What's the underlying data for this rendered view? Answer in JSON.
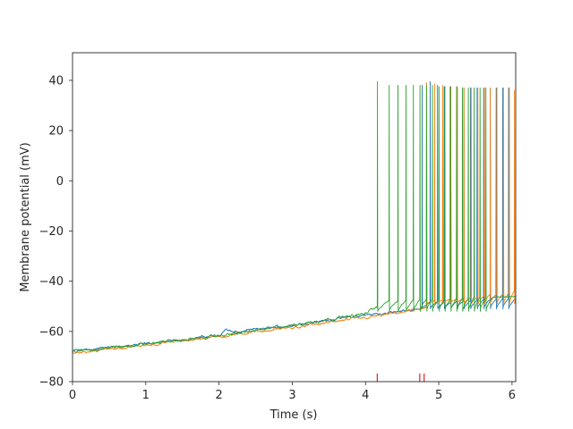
{
  "chart_data": {
    "type": "line",
    "title": "",
    "xlabel": "Time (s)",
    "ylabel": "Membrane potential (mV)",
    "xlim": [
      0,
      6.05
    ],
    "ylim": [
      -80,
      51
    ],
    "xticks": [
      0,
      1,
      2,
      3,
      4,
      5,
      6
    ],
    "yticks": [
      -80,
      -60,
      -40,
      -20,
      0,
      20,
      40
    ],
    "xtick_labels": [
      "0",
      "1",
      "2",
      "3",
      "4",
      "5",
      "6"
    ],
    "ytick_labels": [
      "−80",
      "−60",
      "−40",
      "−20",
      "0",
      "20",
      "40"
    ],
    "grid": false,
    "legend": "none",
    "series": [
      {
        "color": "#1f77b4",
        "start_v": -67.8,
        "baseline": [
          [
            0,
            -67.8
          ],
          [
            1.0,
            -65.0
          ],
          [
            2.0,
            -61.5
          ],
          [
            2.1,
            -59.0
          ],
          [
            2.2,
            -60.5
          ],
          [
            3.0,
            -57.5
          ],
          [
            3.5,
            -55.5
          ],
          [
            4.0,
            -53.5
          ],
          [
            4.5,
            -52.0
          ],
          [
            4.8,
            -50.5
          ],
          [
            6.05,
            -49.0
          ]
        ],
        "spike_times": [
          4.77,
          4.88,
          4.98,
          5.07,
          5.16,
          5.25,
          5.34,
          5.43,
          5.52,
          5.61,
          5.7,
          5.78,
          5.87,
          5.95
        ],
        "spike_peaks": [
          38,
          39.5,
          38,
          37.5,
          37.5,
          37,
          37,
          37,
          37,
          37,
          37,
          37,
          37,
          37
        ],
        "reset_v": -51
      },
      {
        "color": "#ff7f0e",
        "start_v": -68.5,
        "baseline": [
          [
            0,
            -68.5
          ],
          [
            1.0,
            -65.5
          ],
          [
            2.0,
            -62.0
          ],
          [
            3.0,
            -58.5
          ],
          [
            4.0,
            -54.5
          ],
          [
            4.5,
            -52.5
          ],
          [
            4.8,
            -50.5
          ],
          [
            6.05,
            -46.0
          ]
        ],
        "spike_times": [
          4.83,
          4.94,
          5.05,
          5.15,
          5.25,
          5.34,
          5.44,
          5.53,
          5.62,
          5.7,
          5.79,
          5.88,
          5.96,
          6.03
        ],
        "spike_peaks": [
          39,
          38.5,
          38,
          37.5,
          37.5,
          37,
          37,
          37,
          37,
          37,
          37,
          37,
          37,
          36
        ],
        "reset_v": -49
      },
      {
        "color": "#2ca02c",
        "start_v": -67.9,
        "baseline": [
          [
            0,
            -67.9
          ],
          [
            1.0,
            -65.0
          ],
          [
            2.0,
            -61.8
          ],
          [
            3.0,
            -57.5
          ],
          [
            3.5,
            -55.0
          ],
          [
            4.0,
            -53.0
          ],
          [
            4.15,
            -50.0
          ],
          [
            6.05,
            -48.0
          ]
        ],
        "spike_times": [
          4.16,
          4.32,
          4.44,
          4.55,
          4.65,
          4.74,
          4.83,
          4.91,
          5.0,
          5.08,
          5.16,
          5.24,
          5.32,
          5.4,
          5.48,
          5.56,
          5.64
        ],
        "spike_peaks": [
          39.5,
          38,
          38,
          38,
          38,
          38,
          38,
          38,
          37.5,
          37.5,
          37.5,
          37.5,
          37,
          37,
          37,
          37,
          37
        ],
        "reset_v": -52
      }
    ],
    "event_markers": {
      "color": "#d62728",
      "times": [
        4.16,
        4.74,
        4.8
      ]
    }
  }
}
